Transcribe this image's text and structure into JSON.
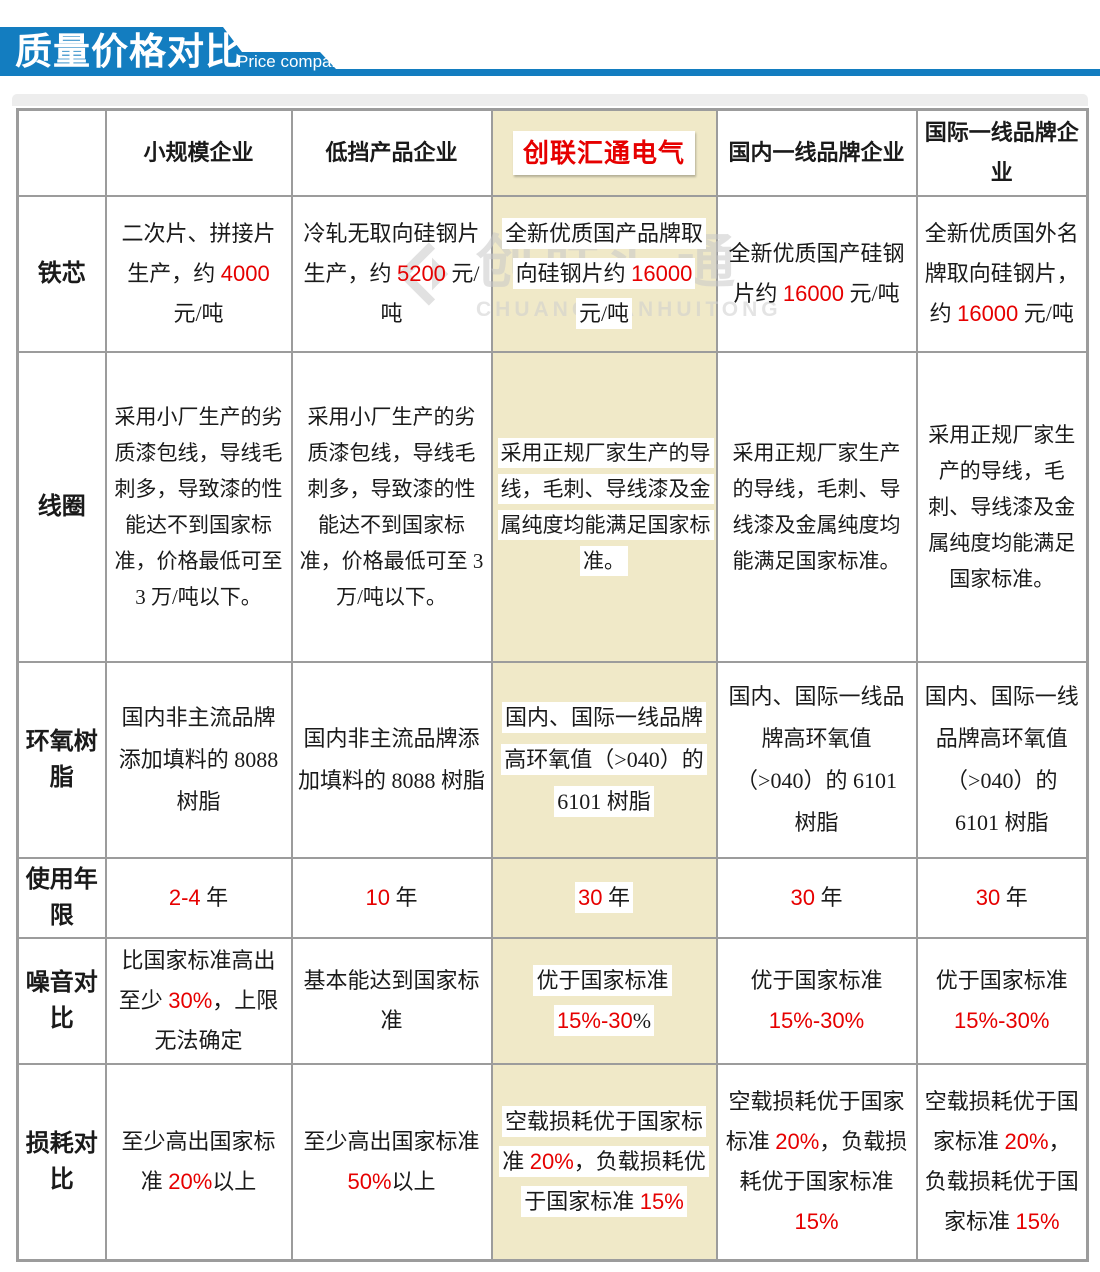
{
  "banner": {
    "title": "质量价格对比",
    "subtitle": "Price comparison"
  },
  "colors": {
    "accent_blue": "#137dc0",
    "accent_red": "#e60000",
    "highlight_beige": "#f0e9c8",
    "border_gray": "#9c9c9c"
  },
  "watermark": {
    "text": "创联汇通",
    "subtext": "CHUANGLIANHUITONG"
  },
  "table": {
    "columns": [
      "",
      "小规模企业",
      "低挡产品企业",
      "创联汇通电气",
      "国内一线品牌企业",
      "国际一线品牌企业"
    ],
    "rows": [
      {
        "header": "铁芯",
        "cells": [
          [
            {
              "t": "二次片、拼接片生产，约 "
            },
            {
              "t": "4000",
              "red": true
            },
            {
              "t": " 元/吨"
            }
          ],
          [
            {
              "t": "冷轧无取向硅钢片生产，约 "
            },
            {
              "t": "5200",
              "red": true
            },
            {
              "t": " 元/吨"
            }
          ],
          [
            {
              "t": "全新优质国产品牌取向硅钢片约 "
            },
            {
              "t": "16000",
              "red": true
            },
            {
              "t": " 元/吨"
            }
          ],
          [
            {
              "t": "全新优质国产硅钢片约 "
            },
            {
              "t": "16000",
              "red": true
            },
            {
              "t": " 元/吨"
            }
          ],
          [
            {
              "t": "全新优质国外名牌取向硅钢片，约 "
            },
            {
              "t": "16000",
              "red": true
            },
            {
              "t": " 元/吨"
            }
          ]
        ]
      },
      {
        "header": "线圈",
        "cells": [
          [
            {
              "t": "采用小厂生产的劣质漆包线，导线毛刺多，导致漆的性能达不到国家标准，价格最低可至 3 万/吨以下。"
            }
          ],
          [
            {
              "t": "采用小厂生产的劣质漆包线，导线毛刺多，导致漆的性能达不到国家标准，价格最低可至 3 万/吨以下。"
            }
          ],
          [
            {
              "t": "采用正规厂家生产的导线，毛刺、导线漆及金属纯度均能满足国家标准。"
            }
          ],
          [
            {
              "t": "采用正规厂家生产的导线，毛刺、导线漆及金属纯度均能满足国家标准。"
            }
          ],
          [
            {
              "t": "采用正规厂家生产的导线，毛刺、导线漆及金属纯度均能满足国家标准。"
            }
          ]
        ]
      },
      {
        "header": "环氧树脂",
        "cells": [
          [
            {
              "t": "国内非主流品牌添加填料的 8088 树脂"
            }
          ],
          [
            {
              "t": "国内非主流品牌添加填料的 8088 树脂"
            }
          ],
          [
            {
              "t": "国内、国际一线品牌高环氧值（>040）的 6101 树脂"
            }
          ],
          [
            {
              "t": "国内、国际一线品牌高环氧值（>040）的 6101 树脂"
            }
          ],
          [
            {
              "t": "国内、国际一线品牌高环氧值（>040）的 6101 树脂"
            }
          ]
        ]
      },
      {
        "header": "使用年限",
        "cells": [
          [
            {
              "t": "2-4",
              "red": true
            },
            {
              "t": " 年"
            }
          ],
          [
            {
              "t": "10",
              "red": true
            },
            {
              "t": " 年"
            }
          ],
          [
            {
              "t": "30",
              "red": true
            },
            {
              "t": " 年"
            }
          ],
          [
            {
              "t": "30",
              "red": true
            },
            {
              "t": " 年"
            }
          ],
          [
            {
              "t": "30",
              "red": true
            },
            {
              "t": " 年"
            }
          ]
        ]
      },
      {
        "header": "噪音对比",
        "cells": [
          [
            {
              "t": "比国家标准高出至少 "
            },
            {
              "t": "30%",
              "red": true
            },
            {
              "t": "，上限无法确定"
            }
          ],
          [
            {
              "t": "基本能达到国家标准"
            }
          ],
          [
            {
              "t": "优于国家标准 "
            },
            {
              "t": "15%-30",
              "red": true
            },
            {
              "t": "%"
            }
          ],
          [
            {
              "t": "优于国家标准 "
            },
            {
              "t": "15%-30%",
              "red": true
            }
          ],
          [
            {
              "t": "优于国家标准 "
            },
            {
              "t": "15%-30%",
              "red": true
            }
          ]
        ]
      },
      {
        "header": "损耗对比",
        "cells": [
          [
            {
              "t": "至少高出国家标准 "
            },
            {
              "t": "20%",
              "red": true
            },
            {
              "t": "以上"
            }
          ],
          [
            {
              "t": "至少高出国家标准 "
            },
            {
              "t": "50%",
              "red": true
            },
            {
              "t": "以上"
            }
          ],
          [
            {
              "t": "空载损耗优于国家标准 "
            },
            {
              "t": "20%",
              "red": true
            },
            {
              "t": "，负载损耗优于国家标准 "
            },
            {
              "t": "15%",
              "red": true
            }
          ],
          [
            {
              "t": "空载损耗优于国家标准 "
            },
            {
              "t": "20%",
              "red": true
            },
            {
              "t": "，负载损耗优于国家标准 "
            },
            {
              "t": "15%",
              "red": true
            }
          ],
          [
            {
              "t": "空载损耗优于国家标准 "
            },
            {
              "t": "20%",
              "red": true
            },
            {
              "t": "，负载损耗优于国家标准 "
            },
            {
              "t": "15%",
              "red": true
            }
          ]
        ]
      }
    ]
  }
}
